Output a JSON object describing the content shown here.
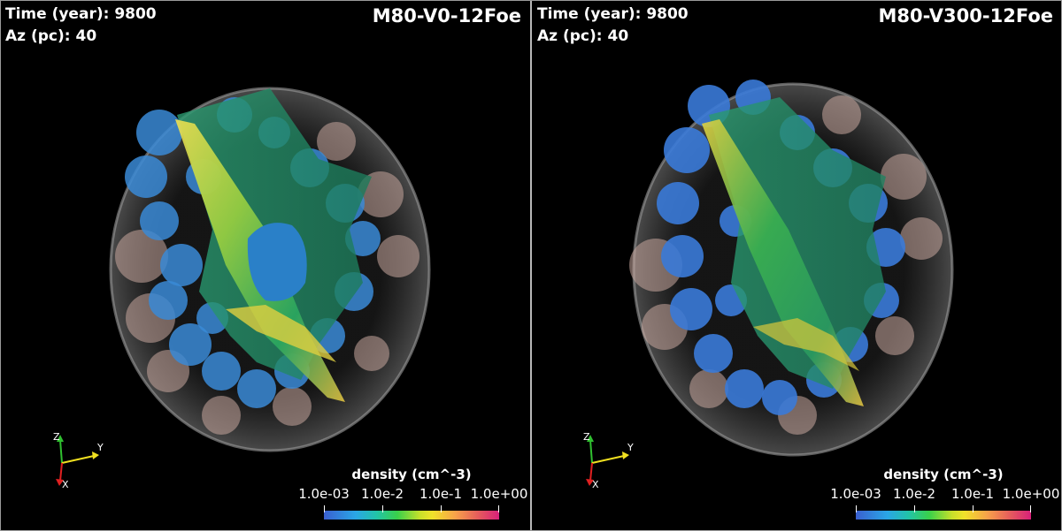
{
  "panels": [
    {
      "time_label": "Time (year):",
      "time_value": "9800",
      "az_label": "Az (pc):",
      "az_value": "40",
      "model": "M80-V0-12Foe"
    },
    {
      "time_label": "Time (year):",
      "time_value": "9800",
      "az_label": "Az (pc):",
      "az_value": "40",
      "model": "M80-V300-12Foe"
    }
  ],
  "colorbar": {
    "title": "density (cm^-3)",
    "ticks": [
      "1.0e-03",
      "1.0e-2",
      "1.0e-1",
      "1.0e+00"
    ]
  },
  "axes": {
    "z": "Z",
    "y": "Y",
    "x": "X"
  },
  "colors": {
    "background": "#000000",
    "shell": "#bfbfbf",
    "clumps": "#3a8ad6",
    "slice_green": "#3db04a",
    "slice_yellow": "#e8d83a",
    "x_axis": "#e02020",
    "y_axis": "#f0e020",
    "z_axis": "#30c030"
  }
}
